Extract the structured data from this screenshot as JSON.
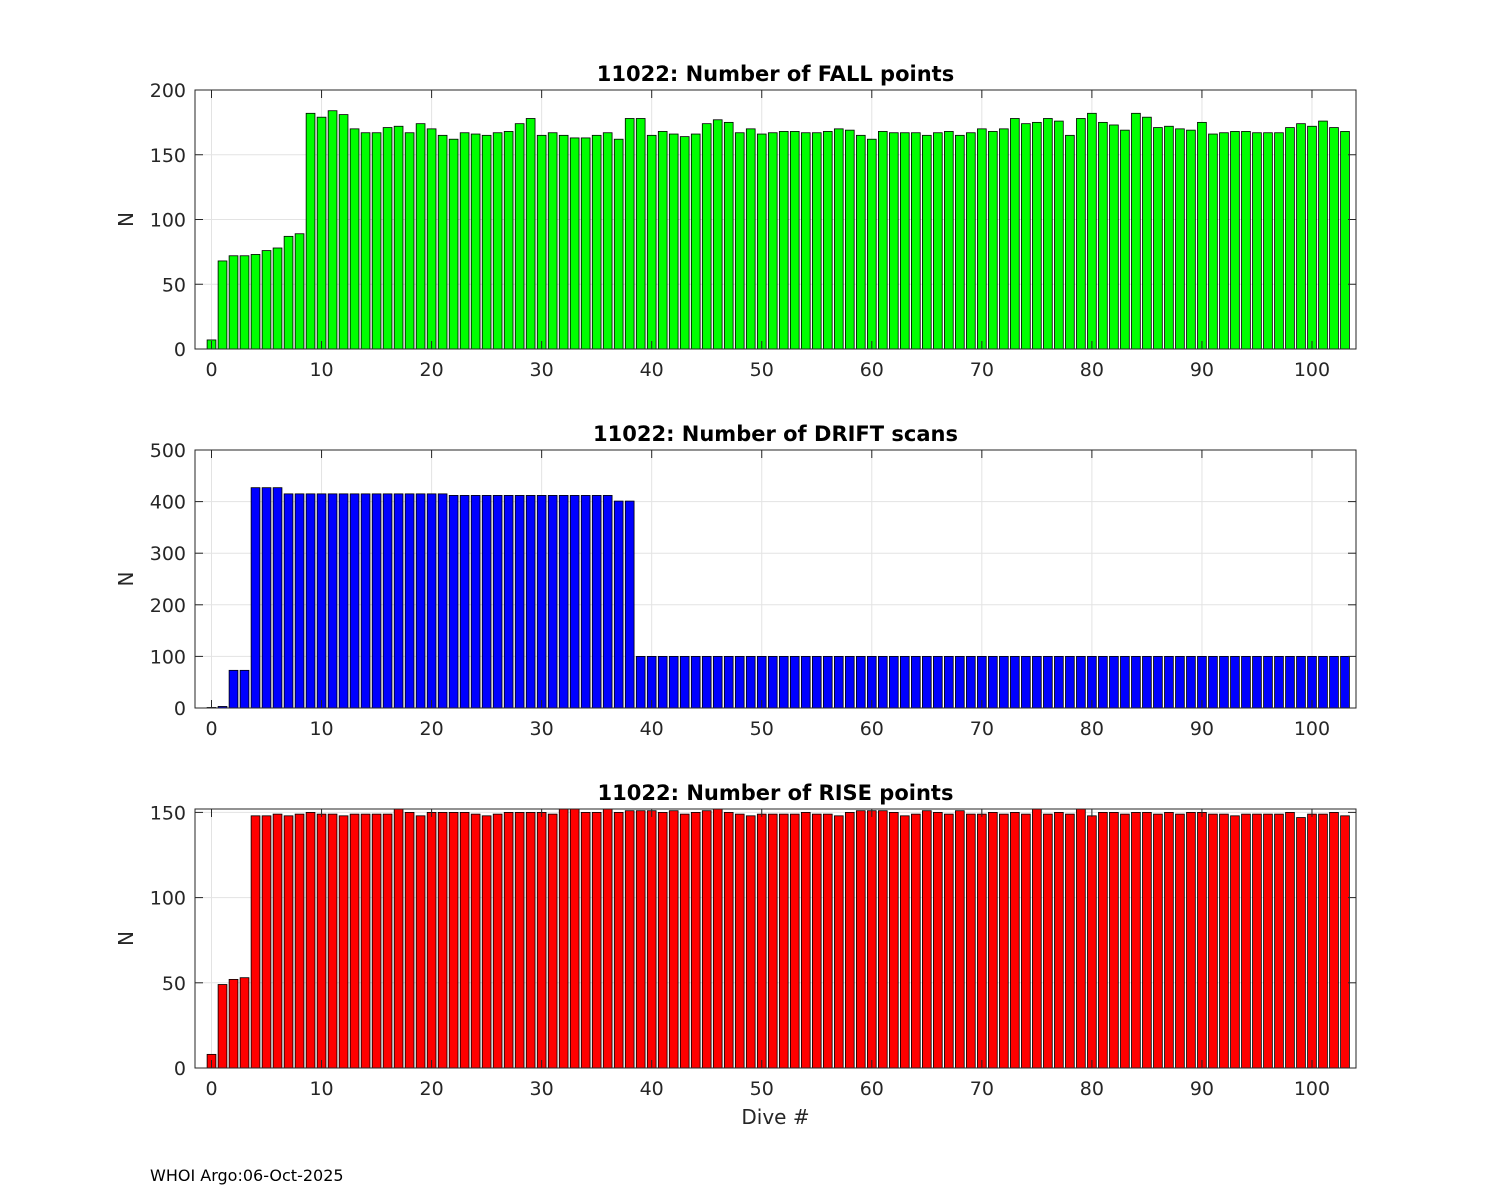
{
  "footer": "WHOI Argo:06-Oct-2025",
  "chart_data": [
    {
      "type": "bar",
      "title": "11022: Number of FALL points",
      "xlabel": "",
      "ylabel": "N",
      "xlim": [
        -1.5,
        104
      ],
      "ylim": [
        0,
        200
      ],
      "xticks": [
        0,
        10,
        20,
        30,
        40,
        50,
        60,
        70,
        80,
        90,
        100
      ],
      "yticks": [
        0,
        50,
        100,
        150,
        200
      ],
      "grid": true,
      "color": "#00ff00",
      "x": [
        0,
        1,
        2,
        3,
        4,
        5,
        6,
        7,
        8,
        9,
        10,
        11,
        12,
        13,
        14,
        15,
        16,
        17,
        18,
        19,
        20,
        21,
        22,
        23,
        24,
        25,
        26,
        27,
        28,
        29,
        30,
        31,
        32,
        33,
        34,
        35,
        36,
        37,
        38,
        39,
        40,
        41,
        42,
        43,
        44,
        45,
        46,
        47,
        48,
        49,
        50,
        51,
        52,
        53,
        54,
        55,
        56,
        57,
        58,
        59,
        60,
        61,
        62,
        63,
        64,
        65,
        66,
        67,
        68,
        69,
        70,
        71,
        72,
        73,
        74,
        75,
        76,
        77,
        78,
        79,
        80,
        81,
        82,
        83,
        84,
        85,
        86,
        87,
        88,
        89,
        90,
        91,
        92,
        93,
        94,
        95,
        96,
        97,
        98,
        99,
        100,
        101,
        102,
        103
      ],
      "values": [
        7,
        68,
        72,
        72,
        73,
        76,
        78,
        87,
        89,
        182,
        179,
        184,
        181,
        170,
        167,
        167,
        171,
        172,
        167,
        174,
        170,
        165,
        162,
        167,
        166,
        165,
        167,
        168,
        174,
        178,
        165,
        167,
        165,
        163,
        163,
        165,
        167,
        162,
        178,
        178,
        165,
        168,
        166,
        164,
        166,
        174,
        177,
        175,
        167,
        170,
        166,
        167,
        168,
        168,
        167,
        167,
        168,
        170,
        169,
        165,
        162,
        168,
        167,
        167,
        167,
        165,
        167,
        168,
        165,
        167,
        170,
        168,
        170,
        178,
        174,
        175,
        178,
        176,
        165,
        178,
        182,
        175,
        173,
        169,
        182,
        179,
        171,
        172,
        170,
        169,
        175,
        166,
        167,
        168,
        168,
        167,
        167,
        167,
        171,
        174,
        172,
        176,
        171,
        168
      ]
    },
    {
      "type": "bar",
      "title": "11022: Number of DRIFT scans",
      "xlabel": "",
      "ylabel": "N",
      "xlim": [
        -1.5,
        104
      ],
      "ylim": [
        0,
        500
      ],
      "xticks": [
        0,
        10,
        20,
        30,
        40,
        50,
        60,
        70,
        80,
        90,
        100
      ],
      "yticks": [
        0,
        100,
        200,
        300,
        400,
        500
      ],
      "grid": true,
      "color": "#0000ff",
      "x": [
        0,
        1,
        2,
        3,
        4,
        5,
        6,
        7,
        8,
        9,
        10,
        11,
        12,
        13,
        14,
        15,
        16,
        17,
        18,
        19,
        20,
        21,
        22,
        23,
        24,
        25,
        26,
        27,
        28,
        29,
        30,
        31,
        32,
        33,
        34,
        35,
        36,
        37,
        38,
        39,
        40,
        41,
        42,
        43,
        44,
        45,
        46,
        47,
        48,
        49,
        50,
        51,
        52,
        53,
        54,
        55,
        56,
        57,
        58,
        59,
        60,
        61,
        62,
        63,
        64,
        65,
        66,
        67,
        68,
        69,
        70,
        71,
        72,
        73,
        74,
        75,
        76,
        77,
        78,
        79,
        80,
        81,
        82,
        83,
        84,
        85,
        86,
        87,
        88,
        89,
        90,
        91,
        92,
        93,
        94,
        95,
        96,
        97,
        98,
        99,
        100,
        101,
        102,
        103
      ],
      "values": [
        1,
        3,
        73,
        73,
        427,
        427,
        427,
        415,
        415,
        415,
        415,
        415,
        415,
        415,
        415,
        415,
        415,
        415,
        415,
        415,
        415,
        415,
        412,
        412,
        412,
        412,
        412,
        412,
        412,
        412,
        412,
        412,
        412,
        412,
        412,
        412,
        412,
        401,
        401,
        100,
        100,
        100,
        100,
        100,
        100,
        100,
        100,
        100,
        100,
        100,
        100,
        100,
        100,
        100,
        100,
        100,
        100,
        100,
        100,
        100,
        100,
        100,
        100,
        100,
        100,
        100,
        100,
        100,
        100,
        100,
        100,
        100,
        100,
        100,
        100,
        100,
        100,
        100,
        100,
        100,
        100,
        100,
        100,
        100,
        100,
        100,
        100,
        100,
        100,
        100,
        100,
        100,
        100,
        100,
        100,
        100,
        100,
        100,
        100,
        100,
        100,
        100,
        100,
        100
      ]
    },
    {
      "type": "bar",
      "title": "11022: Number of RISE points",
      "xlabel": "Dive #",
      "ylabel": "N",
      "xlim": [
        -1.5,
        104
      ],
      "ylim": [
        0,
        152
      ],
      "xticks": [
        0,
        10,
        20,
        30,
        40,
        50,
        60,
        70,
        80,
        90,
        100
      ],
      "yticks": [
        0,
        50,
        100,
        150
      ],
      "grid": true,
      "color": "#ff0000",
      "x": [
        0,
        1,
        2,
        3,
        4,
        5,
        6,
        7,
        8,
        9,
        10,
        11,
        12,
        13,
        14,
        15,
        16,
        17,
        18,
        19,
        20,
        21,
        22,
        23,
        24,
        25,
        26,
        27,
        28,
        29,
        30,
        31,
        32,
        33,
        34,
        35,
        36,
        37,
        38,
        39,
        40,
        41,
        42,
        43,
        44,
        45,
        46,
        47,
        48,
        49,
        50,
        51,
        52,
        53,
        54,
        55,
        56,
        57,
        58,
        59,
        60,
        61,
        62,
        63,
        64,
        65,
        66,
        67,
        68,
        69,
        70,
        71,
        72,
        73,
        74,
        75,
        76,
        77,
        78,
        79,
        80,
        81,
        82,
        83,
        84,
        85,
        86,
        87,
        88,
        89,
        90,
        91,
        92,
        93,
        94,
        95,
        96,
        97,
        98,
        99,
        100,
        101,
        102,
        103
      ],
      "values": [
        8,
        49,
        52,
        53,
        148,
        148,
        149,
        148,
        149,
        150,
        149,
        149,
        148,
        149,
        149,
        149,
        149,
        152,
        150,
        148,
        150,
        150,
        150,
        150,
        149,
        148,
        149,
        150,
        150,
        150,
        150,
        149,
        152,
        152,
        150,
        150,
        152,
        150,
        151,
        151,
        151,
        150,
        151,
        149,
        150,
        151,
        152,
        150,
        149,
        148,
        149,
        149,
        149,
        149,
        150,
        149,
        149,
        148,
        150,
        151,
        151,
        151,
        150,
        148,
        149,
        151,
        150,
        149,
        151,
        149,
        149,
        150,
        149,
        150,
        149,
        152,
        149,
        150,
        149,
        152,
        148,
        150,
        150,
        149,
        150,
        150,
        149,
        150,
        149,
        150,
        150,
        149,
        149,
        148,
        149,
        149,
        149,
        149,
        150,
        147,
        149,
        149,
        150,
        148
      ]
    }
  ]
}
